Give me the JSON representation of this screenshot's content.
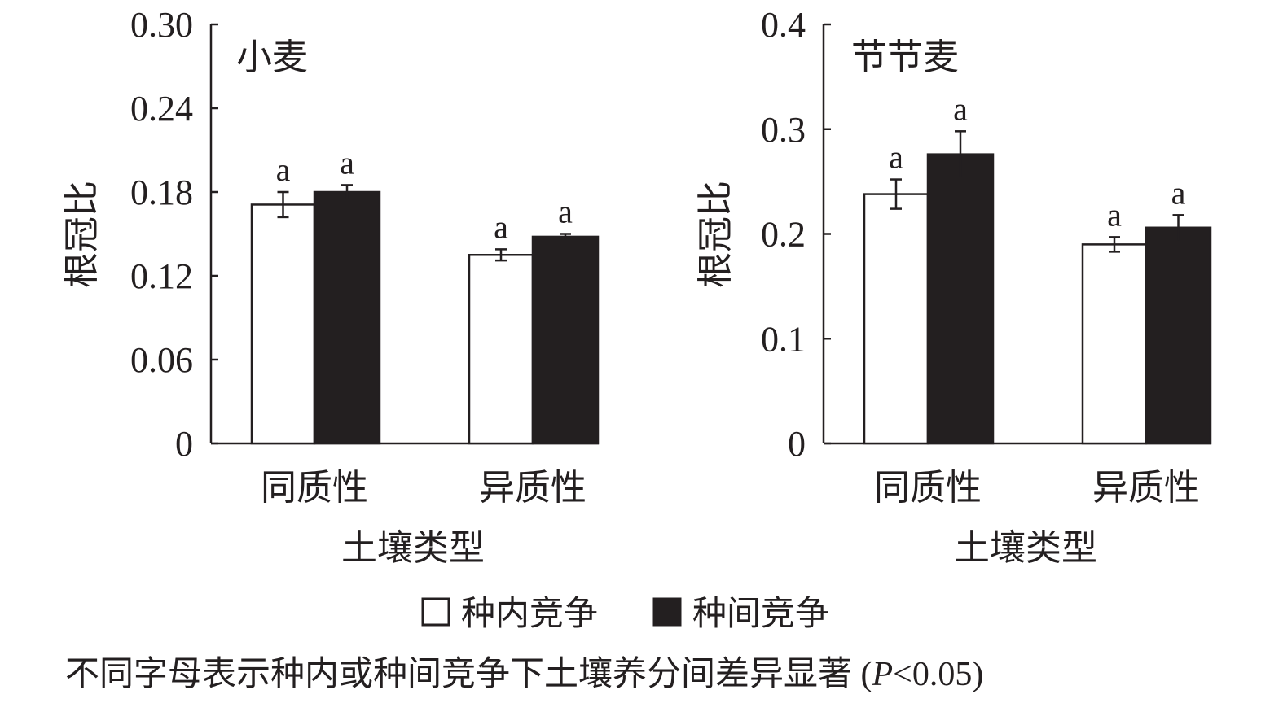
{
  "chart_data": [
    {
      "type": "bar",
      "title": "小麦",
      "ylabel": "根冠比",
      "xlabel": "土壤类型",
      "categories": [
        "同质性",
        "异质性"
      ],
      "ylim": [
        0,
        0.3
      ],
      "yticks": [
        "0",
        "0.06",
        "0.12",
        "0.18",
        "0.24",
        "0.30"
      ],
      "ytick_values": [
        0,
        0.06,
        0.12,
        0.18,
        0.24,
        0.3
      ],
      "series": [
        {
          "name": "种内竞争",
          "values": [
            0.171,
            0.135
          ],
          "errors": [
            0.009,
            0.004
          ],
          "labels": [
            "a",
            "a"
          ]
        },
        {
          "name": "种间竞争",
          "values": [
            0.18,
            0.148
          ],
          "errors": [
            0.005,
            0.002
          ],
          "labels": [
            "a",
            "a"
          ]
        }
      ]
    },
    {
      "type": "bar",
      "title": "节节麦",
      "ylabel": "根冠比",
      "xlabel": "土壤类型",
      "categories": [
        "同质性",
        "异质性"
      ],
      "ylim": [
        0,
        0.4
      ],
      "yticks": [
        "0",
        "0.1",
        "0.2",
        "0.3",
        "0.4"
      ],
      "ytick_values": [
        0,
        0.1,
        0.2,
        0.3,
        0.4
      ],
      "series": [
        {
          "name": "种内竞争",
          "values": [
            0.238,
            0.19
          ],
          "errors": [
            0.014,
            0.007
          ],
          "labels": [
            "a",
            "a"
          ]
        },
        {
          "name": "种间竞争",
          "values": [
            0.276,
            0.206
          ],
          "errors": [
            0.022,
            0.012
          ],
          "labels": [
            "a",
            "a"
          ]
        }
      ]
    }
  ],
  "legend": {
    "placement": "bottom",
    "items": [
      {
        "label": "种内竞争",
        "color": "#ffffff"
      },
      {
        "label": "种间竞争",
        "color": "#231f20"
      }
    ]
  },
  "footnote": {
    "text": "不同字母表示种内或种间竞争下土壤养分间差异显著 (",
    "italic": "P",
    "tail": "<0.05)"
  },
  "colors": {
    "ink": "#231f20",
    "white": "#ffffff"
  }
}
